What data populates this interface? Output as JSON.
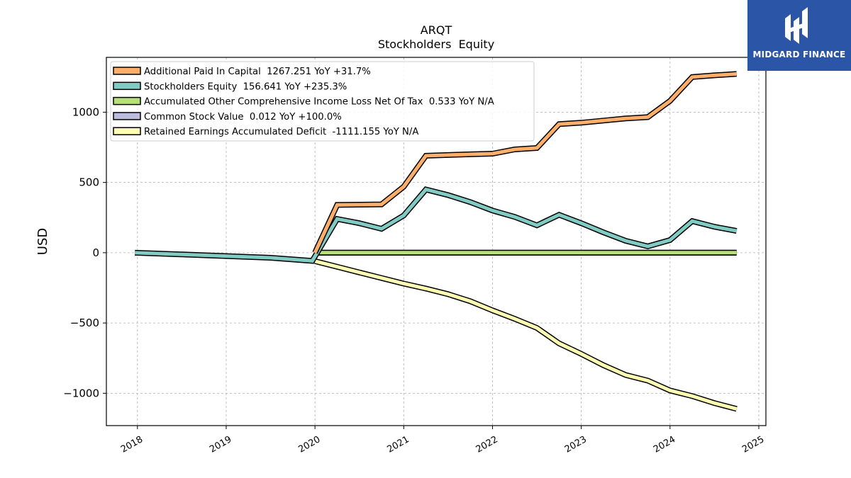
{
  "brand": {
    "name": "MIDGARD FINANCE",
    "bg_color": "#2b56a8"
  },
  "chart_data": {
    "type": "line",
    "title": "ARQT",
    "subtitle": "Stockholders  Equity",
    "ylabel": "USD",
    "xlabel": "",
    "xlim": [
      2017.65,
      2025.08
    ],
    "ylim": [
      -1230,
      1390
    ],
    "x_ticks": [
      2018,
      2019,
      2020,
      2021,
      2022,
      2023,
      2024,
      2025
    ],
    "y_ticks": [
      1000,
      500,
      0,
      -500,
      -1000
    ],
    "y_tick_labels": [
      "1000",
      "500",
      "0",
      "−500",
      "−1000"
    ],
    "grid": true,
    "legend_position": "upper-left",
    "series": [
      {
        "name": "Additional Paid In Capital",
        "legend": "Additional Paid In Capital  1267.251 YoY +31.7%",
        "color": "#fdae6b",
        "x": [
          2020.0,
          2020.25,
          2020.5,
          2020.75,
          2021.0,
          2021.25,
          2021.5,
          2021.75,
          2022.0,
          2022.25,
          2022.5,
          2022.75,
          2023.0,
          2023.25,
          2023.5,
          2023.75,
          2024.0,
          2024.25,
          2024.5,
          2024.75
        ],
        "y": [
          0,
          340,
          342,
          344,
          470,
          690,
          695,
          700,
          705,
          735,
          745,
          915,
          925,
          940,
          955,
          965,
          1080,
          1250,
          1262,
          1272
        ]
      },
      {
        "name": "Stockholders Equity",
        "legend": "Stockholders Equity  156.641 YoY +235.3%",
        "color": "#80cbc4",
        "x": [
          2017.97,
          2018.5,
          2019.0,
          2019.5,
          2019.97,
          2020.25,
          2020.5,
          2020.75,
          2021.0,
          2021.25,
          2021.5,
          2021.75,
          2022.0,
          2022.25,
          2022.5,
          2022.75,
          2023.0,
          2023.25,
          2023.5,
          2023.75,
          2024.0,
          2024.25,
          2024.5,
          2024.75
        ],
        "y": [
          0,
          -12,
          -24,
          -36,
          -58,
          240,
          210,
          170,
          265,
          450,
          410,
          360,
          300,
          255,
          195,
          270,
          210,
          145,
          85,
          45,
          90,
          225,
          185,
          155
        ]
      },
      {
        "name": "Accumulated Other Comprehensive Income Loss Net Of Tax",
        "legend": "Accumulated Other Comprehensive Income Loss Net Of Tax  0.533 YoY N/A",
        "color": "#b7e07a",
        "x": [
          2020.0,
          2024.75
        ],
        "y": [
          0.5,
          0.533
        ]
      },
      {
        "name": "Common Stock Value",
        "legend": "Common Stock Value  0.012 YoY +100.0%",
        "color": "#bcbddc",
        "x": [
          2020.0,
          2024.75
        ],
        "y": [
          0,
          0.012
        ]
      },
      {
        "name": "Retained Earnings Accumulated Deficit",
        "legend": "Retained Earnings Accumulated Deficit  -1111.155 YoY N/A",
        "color": "#ffffb3",
        "x": [
          2020.0,
          2020.25,
          2020.5,
          2020.75,
          2021.0,
          2021.25,
          2021.5,
          2021.75,
          2022.0,
          2022.25,
          2022.5,
          2022.75,
          2023.0,
          2023.25,
          2023.5,
          2023.75,
          2024.0,
          2024.25,
          2024.5,
          2024.75
        ],
        "y": [
          -60,
          -100,
          -140,
          -180,
          -220,
          -255,
          -295,
          -345,
          -410,
          -470,
          -535,
          -645,
          -720,
          -800,
          -870,
          -910,
          -980,
          -1020,
          -1070,
          -1111
        ]
      }
    ]
  }
}
